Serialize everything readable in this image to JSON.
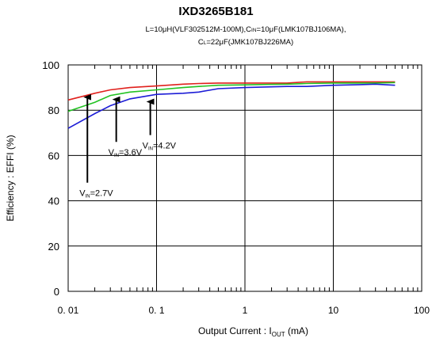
{
  "header": {
    "title": "IXD3265B181",
    "subtitle_line1": "L=10μH(VLF302512M-100M),C",
    "subtitle_line1_sub": "IN",
    "subtitle_line1_rest": "=10μF(LMK107BJ106MA),",
    "subtitle_line2": "C",
    "subtitle_line2_sub": "L",
    "subtitle_line2_rest": "=22μF(JMK107BJ226MA)"
  },
  "chart_data": {
    "type": "line",
    "xlabel": "Output Current : I",
    "xlabel_sub": "OUT",
    "xlabel_rest": " (mA)",
    "ylabel": "Efficiency : EFFI (%)",
    "xscale": "log",
    "xlim": [
      0.01,
      100
    ],
    "ylim": [
      0,
      100
    ],
    "grid": true,
    "x_ticks": [
      {
        "value": 0.01,
        "label": "0. 01"
      },
      {
        "value": 0.1,
        "label": "0. 1"
      },
      {
        "value": 1,
        "label": "1"
      },
      {
        "value": 10,
        "label": "10"
      },
      {
        "value": 100,
        "label": "100"
      }
    ],
    "y_ticks": [
      0,
      20,
      40,
      60,
      80,
      100
    ],
    "series": [
      {
        "name": "VIN=4.2V",
        "color": "#e0201c",
        "x": [
          0.01,
          0.02,
          0.03,
          0.05,
          0.1,
          0.2,
          0.3,
          0.5,
          1,
          2,
          3,
          5,
          10,
          20,
          30,
          50
        ],
        "y": [
          84.5,
          87.5,
          89,
          90,
          90.7,
          91.5,
          91.8,
          92,
          92,
          92,
          92,
          92.5,
          92.5,
          92.5,
          92.5,
          92.5
        ]
      },
      {
        "name": "VIN=3.6V",
        "color": "#22c222",
        "x": [
          0.01,
          0.02,
          0.03,
          0.05,
          0.1,
          0.2,
          0.3,
          0.5,
          1,
          2,
          3,
          5,
          10,
          20,
          30,
          50
        ],
        "y": [
          79.5,
          83.5,
          86.5,
          88,
          89,
          90,
          90.5,
          91,
          91.2,
          91.4,
          91.5,
          91.8,
          92,
          92,
          92,
          92.2
        ]
      },
      {
        "name": "VIN=2.7V",
        "color": "#1c1cd6",
        "x": [
          0.01,
          0.02,
          0.03,
          0.05,
          0.1,
          0.2,
          0.3,
          0.5,
          1,
          2,
          3,
          5,
          10,
          20,
          30,
          50
        ],
        "y": [
          72,
          78.5,
          82,
          85,
          87,
          87.5,
          88,
          89.5,
          90,
          90.3,
          90.5,
          90.5,
          91,
          91.3,
          91.5,
          91
        ]
      }
    ],
    "annotations": [
      {
        "label": "V",
        "sub": "IN",
        "rest": "=4.2V",
        "arrow_x": 0.085,
        "arrow_from_y": 69,
        "arrow_to_y": 85.5
      },
      {
        "label": "V",
        "sub": "IN",
        "rest": "=3.6V",
        "arrow_x": 0.035,
        "arrow_from_y": 66,
        "arrow_to_y": 86.5
      },
      {
        "label": "V",
        "sub": "IN",
        "rest": "=2.7V",
        "arrow_x": 0.0165,
        "arrow_from_y": 48,
        "arrow_to_y": 87.5
      }
    ]
  }
}
